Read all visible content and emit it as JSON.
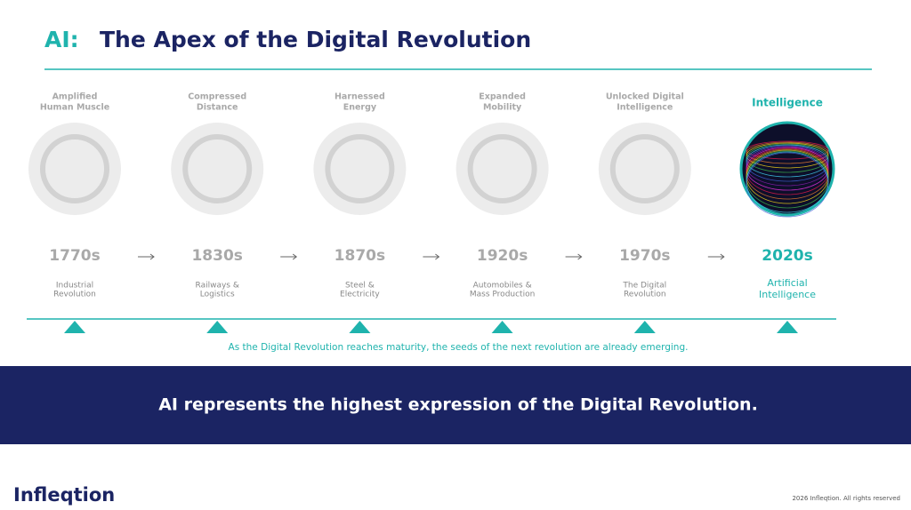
{
  "header": {
    "prefix": "AI:",
    "title": "The Apex of the Digital Revolution"
  },
  "timeline": [
    {
      "heading": [
        "Amplified",
        "Human Muscle"
      ],
      "year": "1770s",
      "label": [
        "Industrial",
        "Revolution"
      ]
    },
    {
      "heading": [
        "Compressed",
        "Distance"
      ],
      "year": "1830s",
      "label": [
        "Railways &",
        "Logistics"
      ]
    },
    {
      "heading": [
        "Harnessed",
        "Energy"
      ],
      "year": "1870s",
      "label": [
        "Steel &",
        "Electricity"
      ]
    },
    {
      "heading": [
        "Expanded",
        "Mobility"
      ],
      "year": "1920s",
      "label": [
        "Automobiles &",
        "Mass Production"
      ]
    },
    {
      "heading": [
        "Unlocked Digital",
        "Intelligence"
      ],
      "year": "1970s",
      "label": [
        "The Digital",
        "Revolution"
      ]
    },
    {
      "heading": [
        "Intelligence"
      ],
      "year": "2020s",
      "label": [
        "Artificial",
        "Intelligence"
      ],
      "highlight": true
    }
  ],
  "caption": "As the Digital Revolution reaches maturity, the seeds of the next revolution are already emerging.",
  "banner": "AI represents the highest expression of the Digital Revolution.",
  "footer": {
    "logo": "Infleqtion",
    "copyright": "2026 Infleqtion. All rights reserved"
  }
}
